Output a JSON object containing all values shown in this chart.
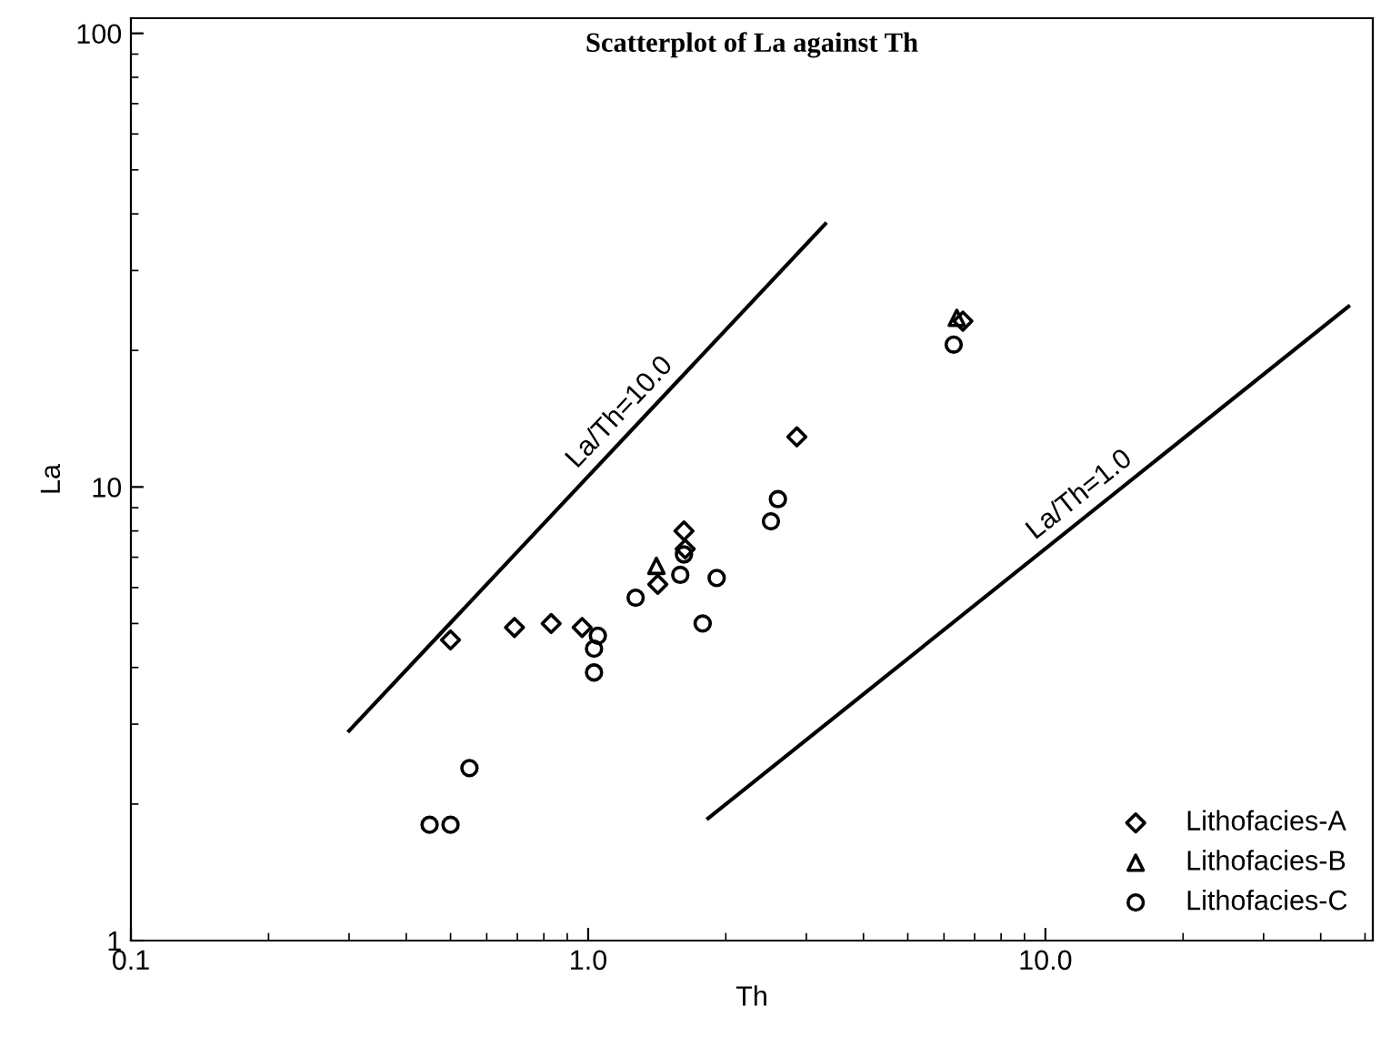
{
  "chart_data": {
    "type": "scatter",
    "title": "Scatterplot of La against Th",
    "xlabel": "Th",
    "ylabel": "La",
    "log": "xy",
    "xlim": [
      0.1,
      52
    ],
    "ylim": [
      1,
      108
    ],
    "xticks": [
      {
        "value": 0.1,
        "label": "0.1"
      },
      {
        "value": 1,
        "label": "1.0"
      },
      {
        "value": 10,
        "label": "10.0"
      }
    ],
    "yticks": [
      1,
      10,
      100
    ],
    "grid": false,
    "legend": "bottom right",
    "series": [
      {
        "name": "Lithofacies-A",
        "color": "#000000",
        "marker": "diamond",
        "x": [
          0.5,
          0.69,
          0.83,
          0.97,
          1.42,
          1.62,
          1.63,
          2.86,
          6.6
        ],
        "values": [
          4.6,
          4.9,
          5.0,
          4.9,
          6.1,
          8.0,
          7.3,
          12.9,
          23.2
        ]
      },
      {
        "name": "Lithofacies-B",
        "color": "#000000",
        "marker": "triangle",
        "x": [
          1.41,
          6.4
        ],
        "values": [
          6.7,
          23.6
        ]
      },
      {
        "name": "Lithofacies-C",
        "color": "#000000",
        "marker": "circle",
        "x": [
          2.6,
          2.51,
          1.62,
          1.59,
          1.91,
          1.27,
          1.78,
          1.05,
          1.03,
          1.03,
          0.55,
          0.45,
          0.5,
          6.3
        ],
        "values": [
          9.4,
          8.4,
          7.1,
          6.4,
          6.3,
          5.7,
          5.0,
          4.7,
          4.4,
          3.9,
          2.4,
          1.8,
          1.8,
          20.6
        ]
      },
      {
        "type": "line",
        "color": "#000000",
        "x": [
          0.3,
          3.3
        ],
        "values": [
          2.9,
          38
        ]
      },
      {
        "type": "line",
        "color": "#000000",
        "x": [
          1.83,
          46
        ],
        "values": [
          1.86,
          25
        ]
      }
    ],
    "annotations": [
      "La/Th=10.0",
      "La/Th=1.0"
    ]
  }
}
